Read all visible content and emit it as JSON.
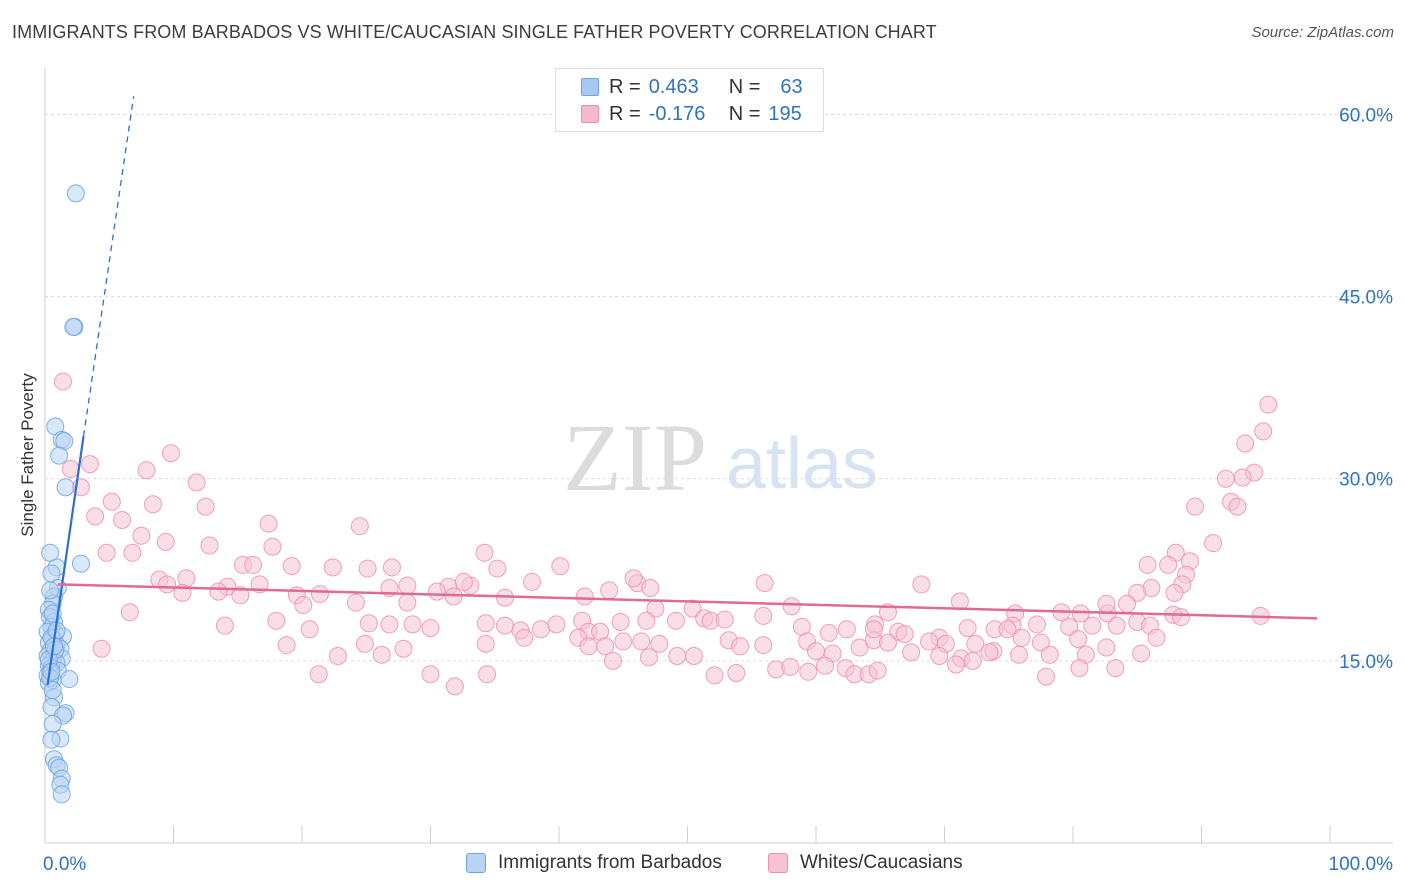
{
  "title": "IMMIGRANTS FROM BARBADOS VS WHITE/CAUCASIAN SINGLE FATHER POVERTY CORRELATION CHART",
  "source": "Source: ZipAtlas.com",
  "watermark": {
    "zip": "ZIP",
    "atlas": "atlas"
  },
  "legend": {
    "rows": [
      {
        "r_label": "R =",
        "r_value": "0.463",
        "n_label": "N =",
        "n_value": "63",
        "color": "#a9c8f0"
      },
      {
        "r_label": "R =",
        "r_value": "-0.176",
        "n_label": "N =",
        "n_value": "195",
        "color": "#f6b9cb"
      }
    ]
  },
  "chart_data": {
    "type": "scatter",
    "title": "IMMIGRANTS FROM BARBADOS VS WHITE/CAUCASIAN SINGLE FATHER POVERTY CORRELATION CHART",
    "xlabel": "",
    "ylabel": "Single Father Poverty",
    "xlim": [
      0,
      100
    ],
    "ylim": [
      0,
      63
    ],
    "x_tick_labels": [
      "0.0%",
      "100.0%"
    ],
    "y_tick_labels": [
      "15.0%",
      "30.0%",
      "45.0%",
      "60.0%"
    ],
    "y_ticks": [
      15,
      30,
      45,
      60
    ],
    "grid": true,
    "series": [
      {
        "name": "Immigrants from Barbados",
        "color": "#6fa3e0",
        "fill": "#b8d3f4",
        "trend": {
          "x": [
            0.2,
            3.0
          ],
          "y": [
            13.0,
            33.5
          ],
          "extended_to": [
            6.9,
            61.5
          ],
          "color": "#2d6fd6"
        },
        "points": [
          [
            2.4,
            53.5
          ],
          [
            2.3,
            42.5
          ],
          [
            2.2,
            42.5
          ],
          [
            0.8,
            34.3
          ],
          [
            1.3,
            33.2
          ],
          [
            1.5,
            33.1
          ],
          [
            1.1,
            31.9
          ],
          [
            1.6,
            29.3
          ],
          [
            2.8,
            23.0
          ],
          [
            0.9,
            22.7
          ],
          [
            0.4,
            23.9
          ],
          [
            0.5,
            22.2
          ],
          [
            1.0,
            21.0
          ],
          [
            0.7,
            20.3
          ],
          [
            0.6,
            19.7
          ],
          [
            0.3,
            19.2
          ],
          [
            0.4,
            18.6
          ],
          [
            0.7,
            18.2
          ],
          [
            0.5,
            17.8
          ],
          [
            0.2,
            17.4
          ],
          [
            0.8,
            17.2
          ],
          [
            1.4,
            17.0
          ],
          [
            0.6,
            16.8
          ],
          [
            0.3,
            16.5
          ],
          [
            0.9,
            16.3
          ],
          [
            1.2,
            16.0
          ],
          [
            0.4,
            15.8
          ],
          [
            0.7,
            15.6
          ],
          [
            0.2,
            15.4
          ],
          [
            1.3,
            15.2
          ],
          [
            0.6,
            15.0
          ],
          [
            0.9,
            14.8
          ],
          [
            0.3,
            14.6
          ],
          [
            0.5,
            14.4
          ],
          [
            1.0,
            14.2
          ],
          [
            0.4,
            14.0
          ],
          [
            0.2,
            13.8
          ],
          [
            1.9,
            13.5
          ],
          [
            0.6,
            13.4
          ],
          [
            0.3,
            13.2
          ],
          [
            0.7,
            12.0
          ],
          [
            0.5,
            11.2
          ],
          [
            1.6,
            10.7
          ],
          [
            1.4,
            10.5
          ],
          [
            0.6,
            9.8
          ],
          [
            1.2,
            8.6
          ],
          [
            0.5,
            8.5
          ],
          [
            0.7,
            6.9
          ],
          [
            0.9,
            6.4
          ],
          [
            1.1,
            6.2
          ],
          [
            1.3,
            5.3
          ],
          [
            1.2,
            4.8
          ],
          [
            1.3,
            4.0
          ],
          [
            0.5,
            16.9
          ],
          [
            0.8,
            15.9
          ],
          [
            0.4,
            13.6
          ],
          [
            0.6,
            18.9
          ],
          [
            0.9,
            17.5
          ],
          [
            0.3,
            15.1
          ],
          [
            0.5,
            14.1
          ],
          [
            0.7,
            16.2
          ],
          [
            0.4,
            20.8
          ],
          [
            0.6,
            12.6
          ]
        ]
      },
      {
        "name": "Whites/Caucasians",
        "color": "#ee8fab",
        "fill": "#f6c3d3",
        "trend": {
          "x": [
            1.0,
            99.0
          ],
          "y": [
            21.3,
            18.5
          ],
          "color": "#e06a94"
        },
        "points": [
          [
            1.4,
            38.0
          ],
          [
            3.5,
            31.2
          ],
          [
            2.0,
            30.8
          ],
          [
            9.8,
            32.1
          ],
          [
            7.9,
            30.7
          ],
          [
            11.8,
            29.7
          ],
          [
            2.8,
            29.3
          ],
          [
            5.2,
            28.1
          ],
          [
            8.4,
            27.9
          ],
          [
            12.5,
            27.7
          ],
          [
            3.9,
            26.9
          ],
          [
            6.0,
            26.6
          ],
          [
            17.4,
            26.3
          ],
          [
            24.5,
            26.1
          ],
          [
            7.5,
            25.3
          ],
          [
            9.4,
            24.8
          ],
          [
            12.8,
            24.5
          ],
          [
            17.7,
            24.4
          ],
          [
            4.8,
            23.9
          ],
          [
            6.8,
            23.9
          ],
          [
            34.2,
            23.9
          ],
          [
            15.4,
            22.9
          ],
          [
            16.2,
            22.9
          ],
          [
            19.2,
            22.8
          ],
          [
            22.4,
            22.7
          ],
          [
            25.1,
            22.6
          ],
          [
            27.0,
            22.7
          ],
          [
            35.2,
            22.6
          ],
          [
            40.1,
            22.8
          ],
          [
            8.9,
            21.7
          ],
          [
            11.0,
            21.8
          ],
          [
            9.5,
            21.3
          ],
          [
            14.2,
            21.1
          ],
          [
            16.7,
            21.3
          ],
          [
            13.5,
            20.7
          ],
          [
            15.2,
            20.4
          ],
          [
            10.7,
            20.6
          ],
          [
            19.6,
            20.4
          ],
          [
            21.4,
            20.5
          ],
          [
            26.8,
            21.0
          ],
          [
            28.2,
            21.2
          ],
          [
            31.4,
            21.1
          ],
          [
            33.1,
            21.2
          ],
          [
            32.6,
            21.5
          ],
          [
            30.5,
            20.7
          ],
          [
            35.8,
            20.2
          ],
          [
            37.9,
            21.5
          ],
          [
            43.9,
            20.8
          ],
          [
            46.1,
            21.4
          ],
          [
            47.1,
            21.0
          ],
          [
            56.0,
            21.4
          ],
          [
            20.1,
            19.6
          ],
          [
            24.2,
            19.8
          ],
          [
            28.2,
            19.8
          ],
          [
            31.8,
            20.3
          ],
          [
            42.0,
            20.3
          ],
          [
            47.5,
            19.3
          ],
          [
            50.4,
            19.3
          ],
          [
            58.1,
            19.5
          ],
          [
            65.6,
            19.0
          ],
          [
            75.5,
            18.9
          ],
          [
            79.1,
            19.0
          ],
          [
            80.6,
            18.9
          ],
          [
            82.7,
            18.9
          ],
          [
            87.8,
            18.8
          ],
          [
            94.6,
            18.7
          ],
          [
            6.6,
            19.0
          ],
          [
            14.0,
            17.9
          ],
          [
            18.0,
            18.3
          ],
          [
            20.6,
            17.6
          ],
          [
            25.2,
            18.1
          ],
          [
            26.8,
            18.0
          ],
          [
            28.6,
            18.0
          ],
          [
            30.0,
            17.7
          ],
          [
            34.3,
            18.1
          ],
          [
            35.8,
            17.9
          ],
          [
            37.0,
            17.5
          ],
          [
            38.6,
            17.6
          ],
          [
            39.8,
            18.0
          ],
          [
            41.8,
            18.3
          ],
          [
            42.3,
            17.4
          ],
          [
            43.2,
            17.4
          ],
          [
            44.8,
            18.2
          ],
          [
            46.8,
            18.3
          ],
          [
            49.1,
            18.3
          ],
          [
            51.3,
            18.5
          ],
          [
            51.8,
            18.3
          ],
          [
            52.9,
            18.4
          ],
          [
            55.9,
            18.7
          ],
          [
            58.9,
            17.8
          ],
          [
            61.0,
            17.3
          ],
          [
            62.4,
            17.6
          ],
          [
            64.6,
            18.0
          ],
          [
            66.4,
            17.4
          ],
          [
            69.6,
            16.9
          ],
          [
            71.8,
            17.7
          ],
          [
            73.9,
            17.6
          ],
          [
            75.3,
            17.9
          ],
          [
            77.2,
            18.0
          ],
          [
            79.7,
            17.8
          ],
          [
            81.5,
            17.9
          ],
          [
            83.4,
            17.9
          ],
          [
            85.0,
            18.2
          ],
          [
            86.0,
            17.9
          ],
          [
            88.4,
            18.6
          ],
          [
            4.4,
            16.0
          ],
          [
            18.8,
            16.3
          ],
          [
            22.8,
            15.4
          ],
          [
            24.9,
            16.4
          ],
          [
            26.2,
            15.5
          ],
          [
            27.9,
            16.0
          ],
          [
            34.3,
            16.4
          ],
          [
            37.3,
            16.9
          ],
          [
            41.5,
            16.9
          ],
          [
            42.3,
            16.2
          ],
          [
            43.6,
            16.2
          ],
          [
            45.0,
            16.6
          ],
          [
            46.4,
            16.6
          ],
          [
            47.8,
            16.4
          ],
          [
            49.2,
            15.4
          ],
          [
            53.2,
            16.7
          ],
          [
            54.1,
            16.2
          ],
          [
            55.9,
            16.3
          ],
          [
            59.3,
            16.6
          ],
          [
            60.0,
            15.8
          ],
          [
            61.3,
            15.6
          ],
          [
            63.4,
            16.1
          ],
          [
            64.5,
            16.7
          ],
          [
            65.6,
            16.5
          ],
          [
            67.4,
            15.7
          ],
          [
            68.8,
            16.6
          ],
          [
            70.1,
            16.4
          ],
          [
            71.3,
            15.2
          ],
          [
            72.4,
            16.4
          ],
          [
            73.8,
            15.8
          ],
          [
            76.0,
            16.9
          ],
          [
            77.5,
            16.5
          ],
          [
            78.2,
            15.5
          ],
          [
            80.4,
            16.8
          ],
          [
            81.0,
            15.5
          ],
          [
            82.6,
            16.1
          ],
          [
            85.3,
            15.6
          ],
          [
            86.5,
            16.9
          ],
          [
            21.3,
            13.9
          ],
          [
            30.0,
            13.9
          ],
          [
            31.9,
            12.9
          ],
          [
            34.4,
            13.9
          ],
          [
            44.2,
            15.0
          ],
          [
            47.0,
            15.3
          ],
          [
            50.5,
            15.4
          ],
          [
            52.1,
            13.8
          ],
          [
            53.8,
            14.0
          ],
          [
            56.9,
            14.3
          ],
          [
            58.0,
            14.5
          ],
          [
            59.4,
            14.1
          ],
          [
            60.7,
            14.6
          ],
          [
            62.3,
            14.4
          ],
          [
            63.0,
            13.9
          ],
          [
            64.1,
            13.9
          ],
          [
            64.8,
            14.2
          ],
          [
            69.6,
            15.4
          ],
          [
            70.9,
            14.7
          ],
          [
            72.2,
            15.0
          ],
          [
            73.5,
            15.7
          ],
          [
            75.8,
            15.5
          ],
          [
            77.9,
            13.7
          ],
          [
            80.5,
            14.4
          ],
          [
            83.3,
            14.4
          ],
          [
            95.2,
            36.1
          ],
          [
            94.8,
            33.9
          ],
          [
            93.4,
            32.9
          ],
          [
            94.1,
            30.5
          ],
          [
            91.9,
            30.0
          ],
          [
            93.2,
            30.1
          ],
          [
            92.3,
            28.1
          ],
          [
            92.8,
            27.7
          ],
          [
            89.5,
            27.7
          ],
          [
            90.9,
            24.7
          ],
          [
            88.0,
            23.9
          ],
          [
            89.1,
            23.2
          ],
          [
            85.8,
            22.9
          ],
          [
            87.4,
            22.9
          ],
          [
            88.8,
            22.1
          ],
          [
            88.5,
            21.3
          ],
          [
            87.9,
            20.6
          ],
          [
            86.1,
            21.0
          ],
          [
            85.0,
            20.6
          ],
          [
            82.6,
            19.7
          ],
          [
            84.2,
            19.7
          ],
          [
            71.2,
            19.9
          ],
          [
            68.2,
            21.3
          ],
          [
            45.8,
            21.8
          ],
          [
            64.5,
            17.6
          ],
          [
            66.9,
            17.2
          ],
          [
            74.9,
            17.6
          ]
        ]
      }
    ]
  },
  "bottom_legend": [
    {
      "label": "Immigrants from Barbados",
      "color": "#b8d3f4"
    },
    {
      "label": "Whites/Caucasians",
      "color": "#f6c3d3"
    }
  ]
}
